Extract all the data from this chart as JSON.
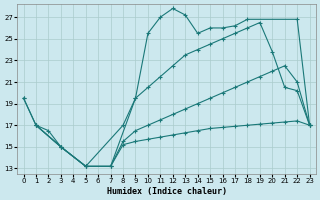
{
  "background_color": "#cce8ee",
  "grid_color": "#aacccc",
  "line_color": "#1a7878",
  "xlabel": "Humidex (Indice chaleur)",
  "xlim": [
    -0.5,
    23.5
  ],
  "ylim": [
    12.5,
    28.2
  ],
  "xticks": [
    0,
    1,
    2,
    3,
    4,
    5,
    6,
    7,
    8,
    9,
    10,
    11,
    12,
    13,
    14,
    15,
    16,
    17,
    18,
    19,
    20,
    21,
    22,
    23
  ],
  "yticks": [
    13,
    15,
    17,
    19,
    21,
    23,
    25,
    27
  ],
  "series": [
    {
      "x": [
        0,
        1,
        2,
        3,
        5,
        7,
        9,
        10,
        11,
        12,
        13,
        14,
        15,
        16,
        17,
        18,
        22,
        23
      ],
      "y": [
        19.5,
        17.0,
        16.5,
        15.0,
        13.2,
        13.2,
        19.5,
        25.5,
        27.0,
        27.8,
        27.2,
        25.5,
        26.0,
        26.0,
        26.2,
        26.8,
        26.8,
        17.0
      ]
    },
    {
      "x": [
        0,
        1,
        3,
        5,
        8,
        9,
        10,
        11,
        12,
        13,
        14,
        15,
        16,
        17,
        18,
        19,
        20,
        21,
        22,
        23
      ],
      "y": [
        19.5,
        17.0,
        15.0,
        13.2,
        17.0,
        19.5,
        20.5,
        21.5,
        22.5,
        23.5,
        24.0,
        24.5,
        25.0,
        25.5,
        26.0,
        26.5,
        23.8,
        20.5,
        20.2,
        17.0
      ]
    },
    {
      "x": [
        1,
        3,
        5,
        7,
        8,
        9,
        10,
        11,
        12,
        13,
        14,
        15,
        16,
        17,
        18,
        19,
        20,
        21,
        22,
        23
      ],
      "y": [
        17.0,
        15.0,
        13.2,
        13.2,
        15.5,
        16.5,
        17.0,
        17.5,
        18.0,
        18.5,
        19.0,
        19.5,
        20.0,
        20.5,
        21.0,
        21.5,
        22.0,
        22.5,
        21.0,
        17.0
      ]
    },
    {
      "x": [
        1,
        3,
        5,
        7,
        8,
        9,
        10,
        11,
        12,
        13,
        14,
        15,
        16,
        17,
        18,
        19,
        20,
        21,
        22,
        23
      ],
      "y": [
        17.0,
        15.0,
        13.2,
        13.2,
        15.2,
        15.5,
        15.7,
        15.9,
        16.1,
        16.3,
        16.5,
        16.7,
        16.8,
        16.9,
        17.0,
        17.1,
        17.2,
        17.3,
        17.4,
        17.0
      ]
    }
  ]
}
